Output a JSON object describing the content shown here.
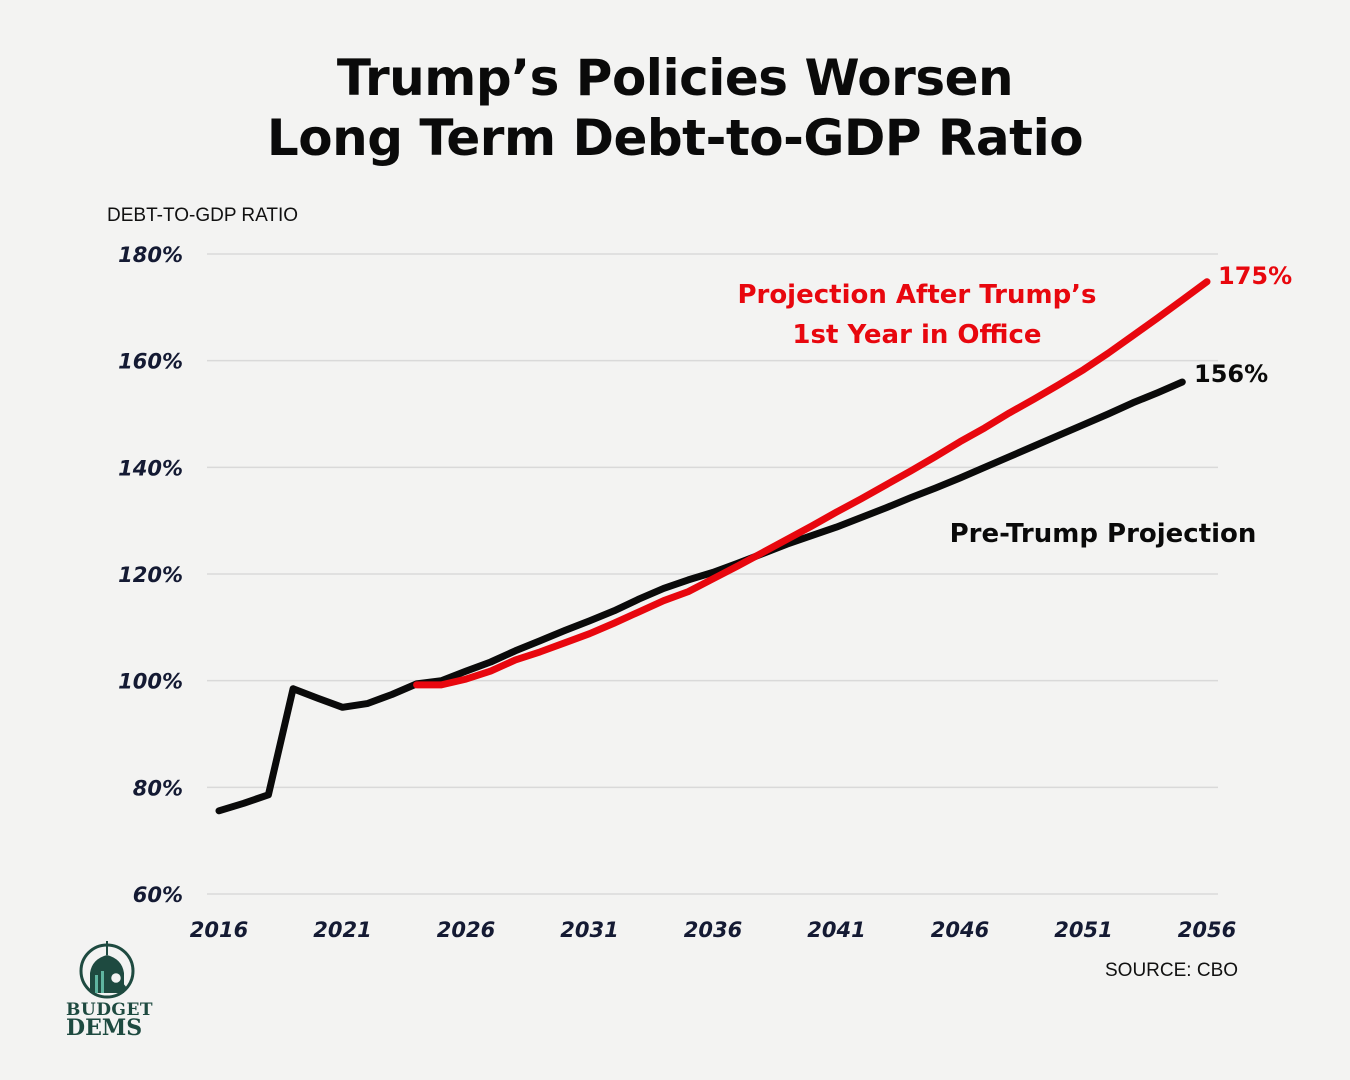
{
  "title_line1": "Trump’s Policies Worsen",
  "title_line2": "Long Term Debt-to-GDP Ratio",
  "source": "SOURCE: CBO",
  "logo": {
    "line1": "BUDGET",
    "line2": "DEMS",
    "icon": "capitol-dome-magnifier-icon"
  },
  "colors": {
    "red": "#e8070e",
    "black": "#0a0a0a",
    "grid": "#d9d9d9",
    "tick": "#141a33",
    "background": "#f3f3f2"
  },
  "chart_data": {
    "type": "line",
    "title": "Trump’s Policies Worsen Long Term Debt-to-GDP Ratio",
    "xlabel": "",
    "ylabel": "DEBT-TO-GDP RATIO",
    "xlim": [
      2016,
      2056
    ],
    "ylim": [
      60,
      180
    ],
    "grid": true,
    "x_ticks": [
      "2016",
      "2021",
      "2026",
      "2031",
      "2036",
      "2041",
      "2046",
      "2051",
      "2056"
    ],
    "x_tick_values": [
      2016,
      2021,
      2026,
      2031,
      2036,
      2041,
      2046,
      2051,
      2056
    ],
    "y_ticks": [
      "60%",
      "80%",
      "100%",
      "120%",
      "140%",
      "160%",
      "180%"
    ],
    "y_tick_values": [
      60,
      80,
      100,
      120,
      140,
      160,
      180
    ],
    "series": [
      {
        "name": "Pre-Trump Projection",
        "color": "#0a0a0a",
        "label": "Pre-Trump Projection",
        "end_label": "156%",
        "x": [
          2016,
          2017,
          2018,
          2019,
          2020,
          2021,
          2022,
          2023,
          2024,
          2025,
          2026,
          2027,
          2028,
          2029,
          2030,
          2031,
          2032,
          2033,
          2034,
          2035,
          2036,
          2037,
          2038,
          2039,
          2040,
          2041,
          2042,
          2043,
          2044,
          2045,
          2046,
          2047,
          2048,
          2049,
          2050,
          2051,
          2052,
          2053,
          2054,
          2055
        ],
        "values": [
          75.6,
          77,
          78.6,
          98.5,
          96.7,
          95,
          95.7,
          97.4,
          99.4,
          100,
          101.8,
          103.5,
          105.6,
          107.5,
          109.4,
          111.2,
          113.1,
          115.3,
          117.3,
          118.9,
          120.3,
          122,
          123.8,
          125.6,
          127.2,
          128.8,
          130.6,
          132.4,
          134.3,
          136.1,
          138,
          140,
          142,
          144,
          146,
          148,
          150,
          152.1,
          154,
          156
        ]
      },
      {
        "name": "Projection After Trump’s 1st Year in Office",
        "color": "#e8070e",
        "label": "Projection After Trump’s 1st Year in Office",
        "label_line1": "Projection After Trump’s",
        "label_line2": "1st Year in Office",
        "end_label": "175%",
        "x": [
          2024,
          2025,
          2026,
          2027,
          2028,
          2029,
          2030,
          2031,
          2032,
          2033,
          2034,
          2035,
          2036,
          2037,
          2038,
          2039,
          2040,
          2041,
          2042,
          2043,
          2044,
          2045,
          2046,
          2047,
          2048,
          2049,
          2050,
          2051,
          2052,
          2053,
          2054,
          2055,
          2056
        ],
        "values": [
          99.2,
          99.2,
          100.3,
          101.8,
          103.9,
          105.4,
          107.1,
          108.8,
          110.8,
          112.9,
          115,
          116.7,
          119.1,
          121.5,
          124,
          126.5,
          129,
          131.6,
          134.1,
          136.7,
          139.3,
          142,
          144.8,
          147.4,
          150.2,
          152.8,
          155.5,
          158.3,
          161.4,
          164.7,
          168,
          171.4,
          174.8
        ]
      }
    ]
  }
}
